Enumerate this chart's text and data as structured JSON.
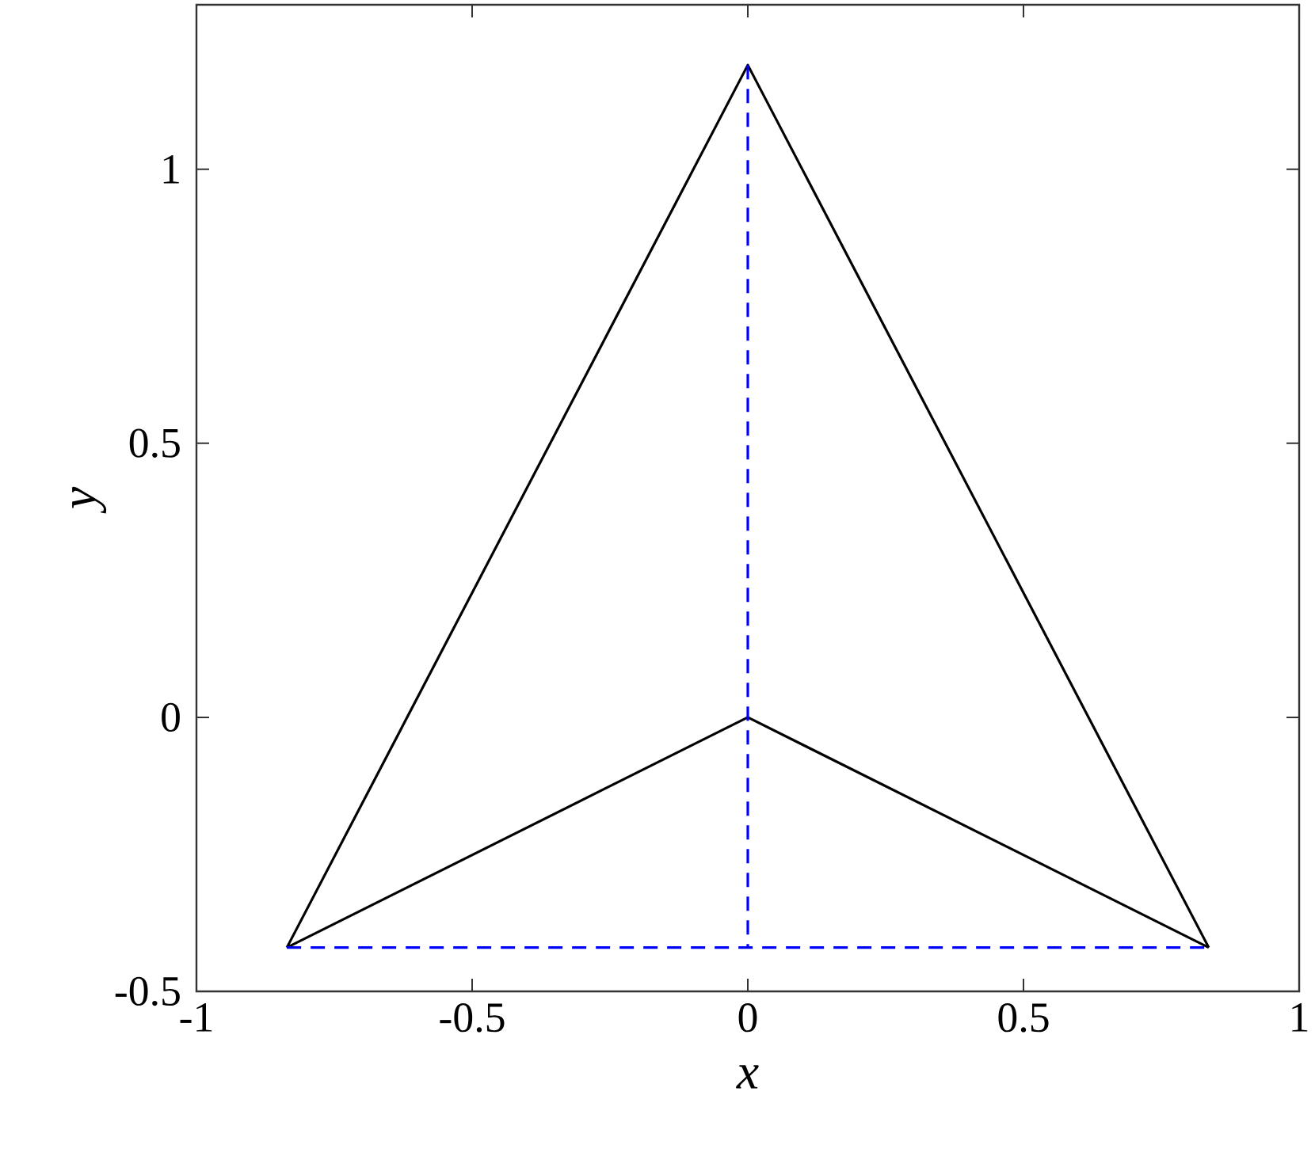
{
  "chart_data": {
    "type": "line",
    "xlabel": "x",
    "ylabel": "y",
    "xlim": [
      -1,
      1
    ],
    "ylim": [
      -0.5,
      1.3
    ],
    "xticks": [
      -1,
      -0.5,
      0,
      0.5,
      1
    ],
    "yticks": [
      -0.5,
      0,
      0.5,
      1
    ],
    "series": [
      {
        "color": "#000000",
        "line_style": "solid",
        "x": [
          -0.836,
          0,
          0.836
        ],
        "values": [
          -0.42,
          1.19,
          -0.42
        ]
      },
      {
        "color": "#000000",
        "line_style": "solid",
        "x": [
          -0.836,
          0,
          0.836
        ],
        "values": [
          -0.42,
          0,
          -0.42
        ]
      },
      {
        "color": "#0000ff",
        "line_style": "dashed",
        "x": [
          0,
          0
        ],
        "values": [
          1.19,
          -0.42
        ]
      },
      {
        "color": "#0000ff",
        "line_style": "dashed",
        "x": [
          -0.836,
          0.836
        ],
        "values": [
          -0.42,
          -0.42
        ]
      }
    ]
  }
}
